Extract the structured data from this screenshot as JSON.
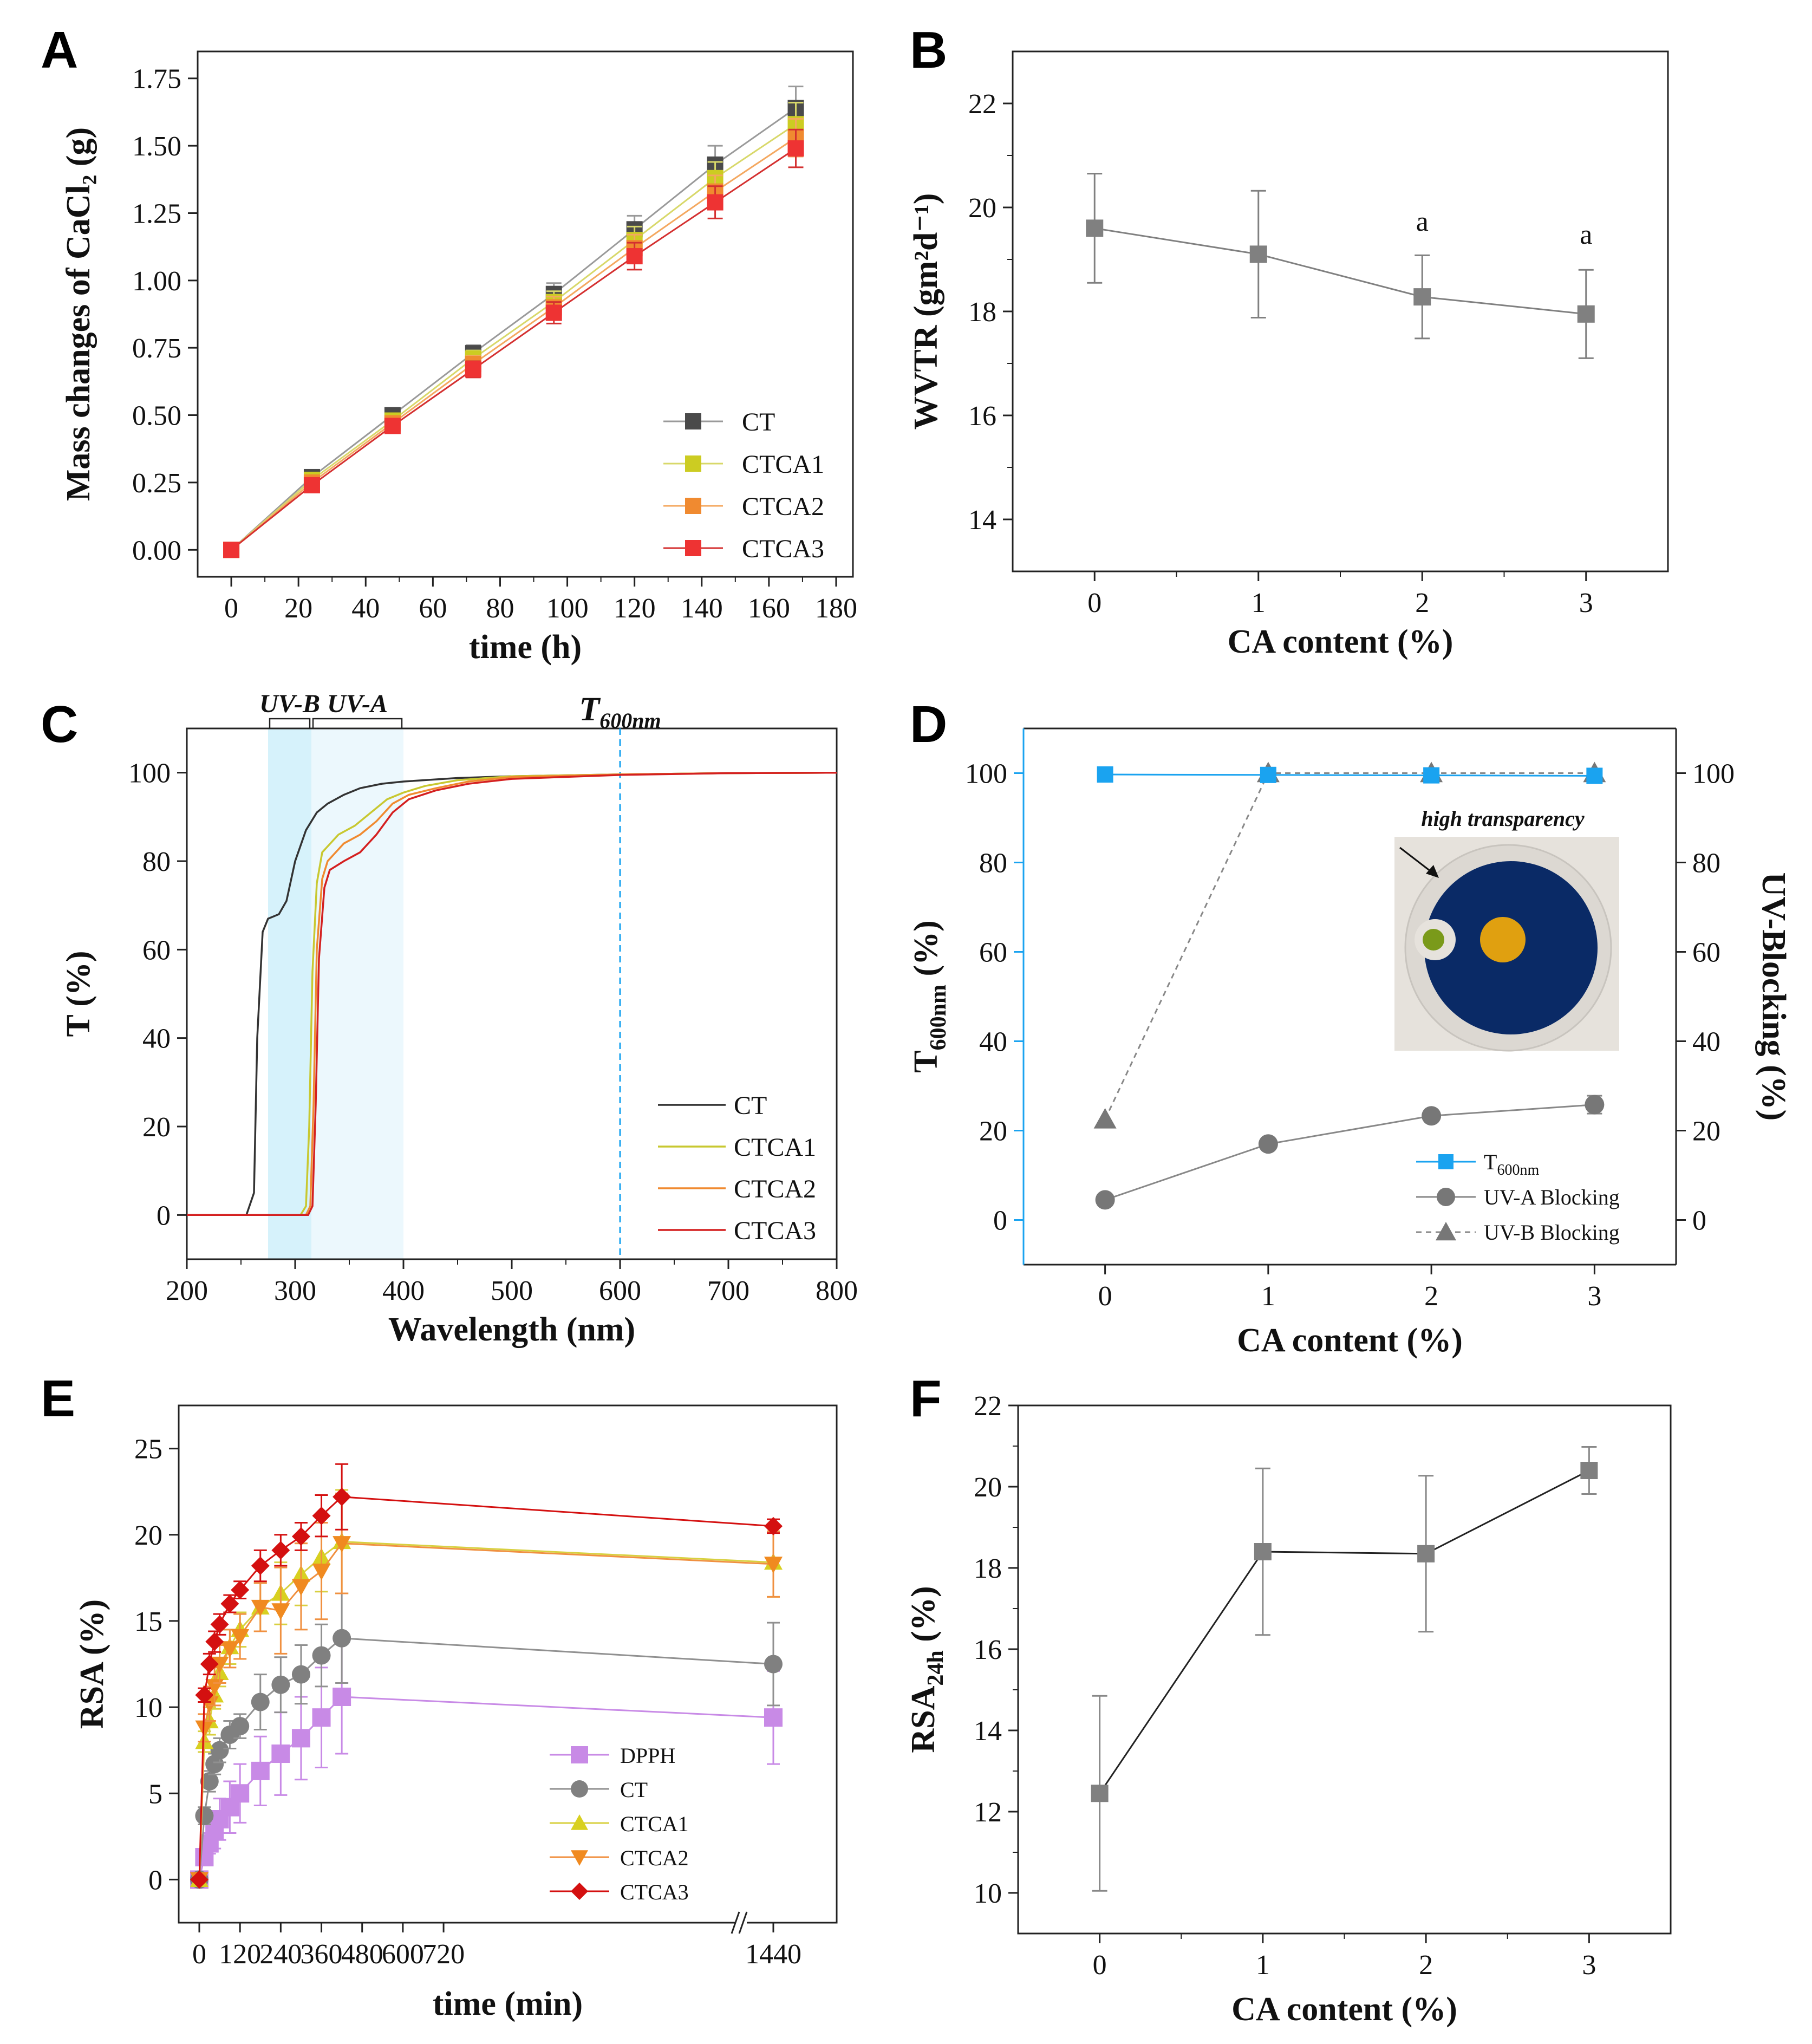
{
  "colors": {
    "CT": "#4a4a4a",
    "CT_line": "#9a9a9a",
    "CTCA1": "#cccc22",
    "CTCA1_line": "#d8d86a",
    "CTCA2": "#f08a30",
    "CTCA2_line": "#f4a860",
    "CTCA3": "#ee3333",
    "CTCA3_line": "#d43030",
    "gray": "#808080",
    "blue": "#1aa3f0",
    "purple": "#c88ae6",
    "E_CTCA1": "#d8d020",
    "E_CTCA2": "#f08a20",
    "E_CTCA3": "#d41010"
  },
  "panels": {
    "A": {
      "letter": "A"
    },
    "B": {
      "letter": "B"
    },
    "C": {
      "letter": "C"
    },
    "D": {
      "letter": "D"
    },
    "E": {
      "letter": "E"
    },
    "F": {
      "letter": "F"
    }
  },
  "chart_data": [
    {
      "panel": "A",
      "type": "line",
      "xlabel": "time (h)",
      "ylabel": "Mass changes of CaCl₂ (g)",
      "xlim": [
        -10,
        185
      ],
      "ylim": [
        -0.1,
        1.85
      ],
      "xticks": [
        0,
        20,
        40,
        60,
        80,
        100,
        120,
        140,
        160,
        180
      ],
      "yticks": [
        "0.00",
        "0.25",
        "0.50",
        "0.75",
        "1.00",
        "1.25",
        "1.50",
        "1.75"
      ],
      "x": [
        0,
        24,
        48,
        72,
        96,
        120,
        144,
        168
      ],
      "legend_position": "bottom-right",
      "series": [
        {
          "name": "CT",
          "values": [
            0,
            0.27,
            0.5,
            0.73,
            0.95,
            1.19,
            1.43,
            1.64
          ],
          "errors": [
            0,
            0.02,
            0.02,
            0.03,
            0.04,
            0.05,
            0.07,
            0.08
          ]
        },
        {
          "name": "CTCA1",
          "values": [
            0,
            0.26,
            0.48,
            0.71,
            0.92,
            1.15,
            1.38,
            1.58
          ],
          "errors": [
            0,
            0.02,
            0.02,
            0.03,
            0.04,
            0.05,
            0.06,
            0.08
          ]
        },
        {
          "name": "CTCA2",
          "values": [
            0,
            0.25,
            0.47,
            0.69,
            0.9,
            1.12,
            1.33,
            1.53
          ],
          "errors": [
            0,
            0.02,
            0.02,
            0.03,
            0.04,
            0.05,
            0.06,
            0.07
          ]
        },
        {
          "name": "CTCA3",
          "values": [
            0,
            0.24,
            0.46,
            0.67,
            0.88,
            1.09,
            1.29,
            1.49
          ],
          "errors": [
            0,
            0.02,
            0.02,
            0.03,
            0.04,
            0.05,
            0.06,
            0.07
          ]
        }
      ]
    },
    {
      "panel": "B",
      "type": "line",
      "xlabel": "CA content (%)",
      "ylabel": "WVTR (gm²d⁻¹)",
      "xlim": [
        -0.5,
        3.5
      ],
      "ylim": [
        13,
        23
      ],
      "xticks": [
        0,
        1,
        2,
        3
      ],
      "yticks": [
        14,
        16,
        18,
        20,
        22
      ],
      "x": [
        0,
        1,
        2,
        3
      ],
      "series": [
        {
          "name": "WVTR",
          "values": [
            19.6,
            19.1,
            18.28,
            17.95
          ],
          "errors": [
            1.05,
            1.22,
            0.8,
            0.85
          ]
        }
      ],
      "annotations": [
        {
          "x": 2,
          "y": 19.55,
          "text": "a"
        },
        {
          "x": 3,
          "y": 19.3,
          "text": "a"
        }
      ]
    },
    {
      "panel": "C",
      "type": "line",
      "xlabel": "Wavelength (nm)",
      "ylabel": "T (%)",
      "xlim": [
        200,
        800
      ],
      "ylim": [
        -10,
        110
      ],
      "xticks": [
        200,
        300,
        400,
        500,
        600,
        700,
        800
      ],
      "yticks": [
        0,
        20,
        40,
        60,
        80,
        100
      ],
      "bands": [
        {
          "label": "UV-B",
          "from": 275,
          "to": 315
        },
        {
          "label": "UV-A",
          "from": 315,
          "to": 400
        }
      ],
      "marker_line": {
        "x": 600,
        "label": "T",
        "sub": "600nm"
      },
      "legend_position": "bottom-right",
      "series": [
        {
          "name": "CT",
          "x": [
            200,
            255,
            262,
            265,
            270,
            275,
            285,
            292,
            300,
            310,
            320,
            330,
            345,
            360,
            380,
            400,
            450,
            500,
            600,
            700,
            800
          ],
          "values": [
            0,
            0,
            5,
            40,
            64,
            67,
            68,
            71,
            80,
            87,
            91,
            93,
            95,
            96.5,
            97.5,
            98,
            98.8,
            99.2,
            99.6,
            99.9,
            100
          ]
        },
        {
          "name": "CTCA1",
          "x": [
            200,
            305,
            310,
            313,
            316,
            320,
            325,
            340,
            355,
            370,
            385,
            400,
            420,
            450,
            500,
            600,
            700,
            800
          ],
          "values": [
            0,
            0,
            2,
            20,
            55,
            75,
            82,
            86,
            88,
            91,
            94,
            95.5,
            97,
            98.3,
            99.2,
            99.6,
            99.9,
            100
          ]
        },
        {
          "name": "CTCA2",
          "x": [
            200,
            310,
            314,
            317,
            320,
            325,
            330,
            345,
            360,
            375,
            390,
            405,
            430,
            460,
            500,
            600,
            700,
            800
          ],
          "values": [
            0,
            0,
            2,
            25,
            60,
            76,
            80,
            84,
            86,
            89,
            93,
            95,
            96.5,
            98,
            99,
            99.6,
            99.9,
            100
          ]
        },
        {
          "name": "CTCA3",
          "x": [
            200,
            312,
            316,
            319,
            322,
            327,
            332,
            345,
            360,
            375,
            390,
            405,
            430,
            460,
            500,
            600,
            700,
            800
          ],
          "values": [
            0,
            0,
            2,
            25,
            58,
            74,
            78,
            80,
            82,
            86,
            91,
            94,
            96,
            97.5,
            98.6,
            99.5,
            99.9,
            100
          ]
        }
      ]
    },
    {
      "panel": "D",
      "type": "line",
      "xlabel": "CA content (%)",
      "ylabel_left": "T",
      "ylabel_left_sub": "600nm",
      "ylabel_left_suffix": " (%)",
      "ylabel_right": "UV-Blocking (%)",
      "xlim": [
        -0.5,
        3.5
      ],
      "ylim": [
        -10,
        110
      ],
      "xticks": [
        0,
        1,
        2,
        3
      ],
      "yticks": [
        0,
        20,
        40,
        60,
        80,
        100
      ],
      "x": [
        0,
        1,
        2,
        3
      ],
      "inset_label": "high transparency",
      "legend_position": "bottom-right",
      "series": [
        {
          "name": "T",
          "sub": "600nm",
          "values": [
            99.7,
            99.6,
            99.5,
            99.4
          ],
          "errors": [
            0,
            0,
            0,
            0
          ],
          "axis": "left"
        },
        {
          "name": "UV-A Blocking",
          "values": [
            4.5,
            17,
            23.3,
            25.8
          ],
          "errors": [
            0,
            0.5,
            0.5,
            2.0
          ],
          "axis": "right"
        },
        {
          "name": "UV-B Blocking",
          "values": [
            22.5,
            100,
            100,
            100
          ],
          "errors": [
            0,
            0,
            0,
            0
          ],
          "axis": "right"
        }
      ]
    },
    {
      "panel": "E",
      "type": "line",
      "xlabel": "time (min)",
      "ylabel": "RSA (%)",
      "ylim": [
        -2.5,
        27.5
      ],
      "xticks": [
        "0",
        "120",
        "240",
        "360",
        "480",
        "600",
        "720",
        "1440"
      ],
      "yticks": [
        0,
        5,
        10,
        15,
        20,
        25
      ],
      "x": [
        0,
        15,
        30,
        45,
        60,
        90,
        120,
        180,
        240,
        300,
        360,
        420,
        1440
      ],
      "legend_position": "bottom-center",
      "series": [
        {
          "name": "DPPH",
          "values": [
            0,
            1.3,
            2.1,
            2.8,
            3.5,
            4.2,
            5.0,
            6.3,
            7.3,
            8.2,
            9.4,
            10.6,
            9.4
          ],
          "errors": [
            0,
            0.4,
            0.6,
            1.0,
            1.2,
            1.5,
            1.7,
            2.0,
            2.4,
            2.4,
            2.9,
            3.3,
            2.7
          ]
        },
        {
          "name": "CT",
          "values": [
            0,
            3.7,
            5.7,
            6.7,
            7.5,
            8.4,
            8.9,
            10.3,
            11.3,
            11.9,
            13.0,
            14.0,
            12.5
          ],
          "errors": [
            0,
            0.5,
            0.6,
            0.6,
            0.7,
            0.8,
            0.7,
            1.6,
            1.6,
            1.7,
            1.8,
            2.6,
            2.4
          ]
        },
        {
          "name": "CTCA1",
          "values": [
            0,
            8.0,
            9.2,
            10.7,
            12.0,
            13.5,
            14.5,
            15.8,
            16.6,
            17.7,
            18.7,
            19.6,
            18.4
          ],
          "errors": [
            0,
            0.6,
            0.8,
            0.8,
            0.8,
            1.0,
            1.0,
            1.4,
            1.8,
            1.8,
            2.0,
            3.0,
            2.0
          ]
        },
        {
          "name": "CTCA2",
          "values": [
            0,
            8.8,
            10.2,
            11.2,
            12.5,
            13.4,
            14.1,
            15.8,
            15.6,
            17.0,
            17.9,
            19.5,
            18.3
          ],
          "errors": [
            0,
            0.8,
            1.0,
            1.1,
            1.1,
            1.1,
            1.3,
            1.4,
            2.5,
            2.5,
            2.8,
            2.9,
            1.9
          ]
        },
        {
          "name": "CTCA3",
          "values": [
            0,
            10.7,
            12.5,
            13.8,
            14.8,
            16.0,
            16.8,
            18.2,
            19.1,
            19.9,
            21.1,
            22.2,
            20.5
          ],
          "errors": [
            0,
            0.4,
            0.6,
            0.6,
            0.6,
            0.5,
            0.5,
            0.9,
            0.9,
            0.8,
            1.2,
            1.9,
            0.4
          ]
        }
      ]
    },
    {
      "panel": "F",
      "type": "line",
      "xlabel": "CA content (%)",
      "ylabel": "RSA",
      "ylabel_sub": "24h",
      "ylabel_suffix": " (%)",
      "xlim": [
        -0.5,
        3.5
      ],
      "ylim": [
        9,
        22
      ],
      "xticks": [
        0,
        1,
        2,
        3
      ],
      "yticks": [
        10,
        12,
        14,
        16,
        18,
        20,
        22
      ],
      "x": [
        0,
        1,
        2,
        3
      ],
      "series": [
        {
          "name": "RSA24h",
          "values": [
            12.45,
            18.4,
            18.35,
            20.4
          ],
          "errors": [
            2.4,
            2.05,
            1.92,
            0.58
          ]
        }
      ]
    }
  ]
}
